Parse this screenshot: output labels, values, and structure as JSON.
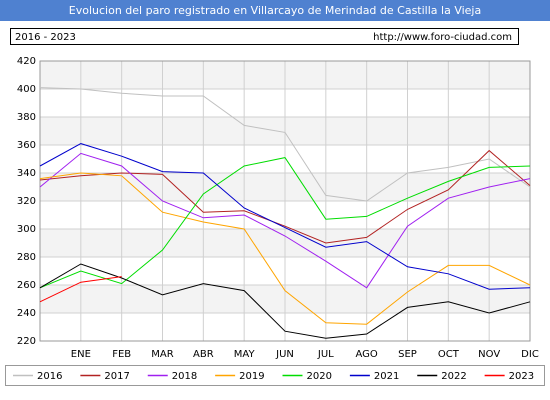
{
  "chart_data": {
    "type": "line",
    "title": "Evolucion del paro registrado en Villarcayo de Merindad de Castilla la Vieja",
    "subtitle": "2016 - 2023",
    "source": "http://www.foro-ciudad.com",
    "categories": [
      null,
      "ENE",
      "FEB",
      "MAR",
      "ABR",
      "MAY",
      "JUN",
      "JUL",
      "AGO",
      "SEP",
      "OCT",
      "NOV",
      "DIC"
    ],
    "ylim": [
      220,
      420
    ],
    "yticks": [
      220,
      240,
      260,
      280,
      300,
      320,
      340,
      360,
      380,
      400,
      420
    ],
    "grid": true,
    "legend": "bottom",
    "series": [
      {
        "name": "2016",
        "color": "#c0c0c0",
        "values": [
          401,
          400,
          397,
          395,
          395,
          374,
          369,
          324,
          320,
          340,
          344,
          350,
          330
        ]
      },
      {
        "name": "2017",
        "color": "#b22222",
        "values": [
          335,
          338,
          340,
          339,
          312,
          313,
          302,
          290,
          294,
          314,
          328,
          356,
          331
        ]
      },
      {
        "name": "2018",
        "color": "#a020f0",
        "values": [
          330,
          354,
          345,
          320,
          308,
          310,
          295,
          277,
          258,
          302,
          322,
          330,
          336
        ]
      },
      {
        "name": "2019",
        "color": "#ffa500",
        "values": [
          336,
          340,
          338,
          312,
          305,
          300,
          256,
          233,
          232,
          255,
          274,
          274,
          260
        ]
      },
      {
        "name": "2020",
        "color": "#00dd00",
        "values": [
          258,
          270,
          261,
          285,
          325,
          345,
          351,
          307,
          309,
          322,
          334,
          344,
          345
        ]
      },
      {
        "name": "2021",
        "color": "#0000cc",
        "values": [
          345,
          361,
          352,
          341,
          340,
          315,
          301,
          287,
          291,
          273,
          268,
          257,
          258
        ]
      },
      {
        "name": "2022",
        "color": "#000000",
        "values": [
          258,
          275,
          265,
          253,
          261,
          256,
          227,
          222,
          225,
          244,
          248,
          240,
          248
        ]
      },
      {
        "name": "2023",
        "color": "#ff0000",
        "values": [
          248,
          262,
          266,
          null,
          null,
          null,
          null,
          null,
          null,
          null,
          null,
          null,
          null
        ]
      }
    ]
  }
}
